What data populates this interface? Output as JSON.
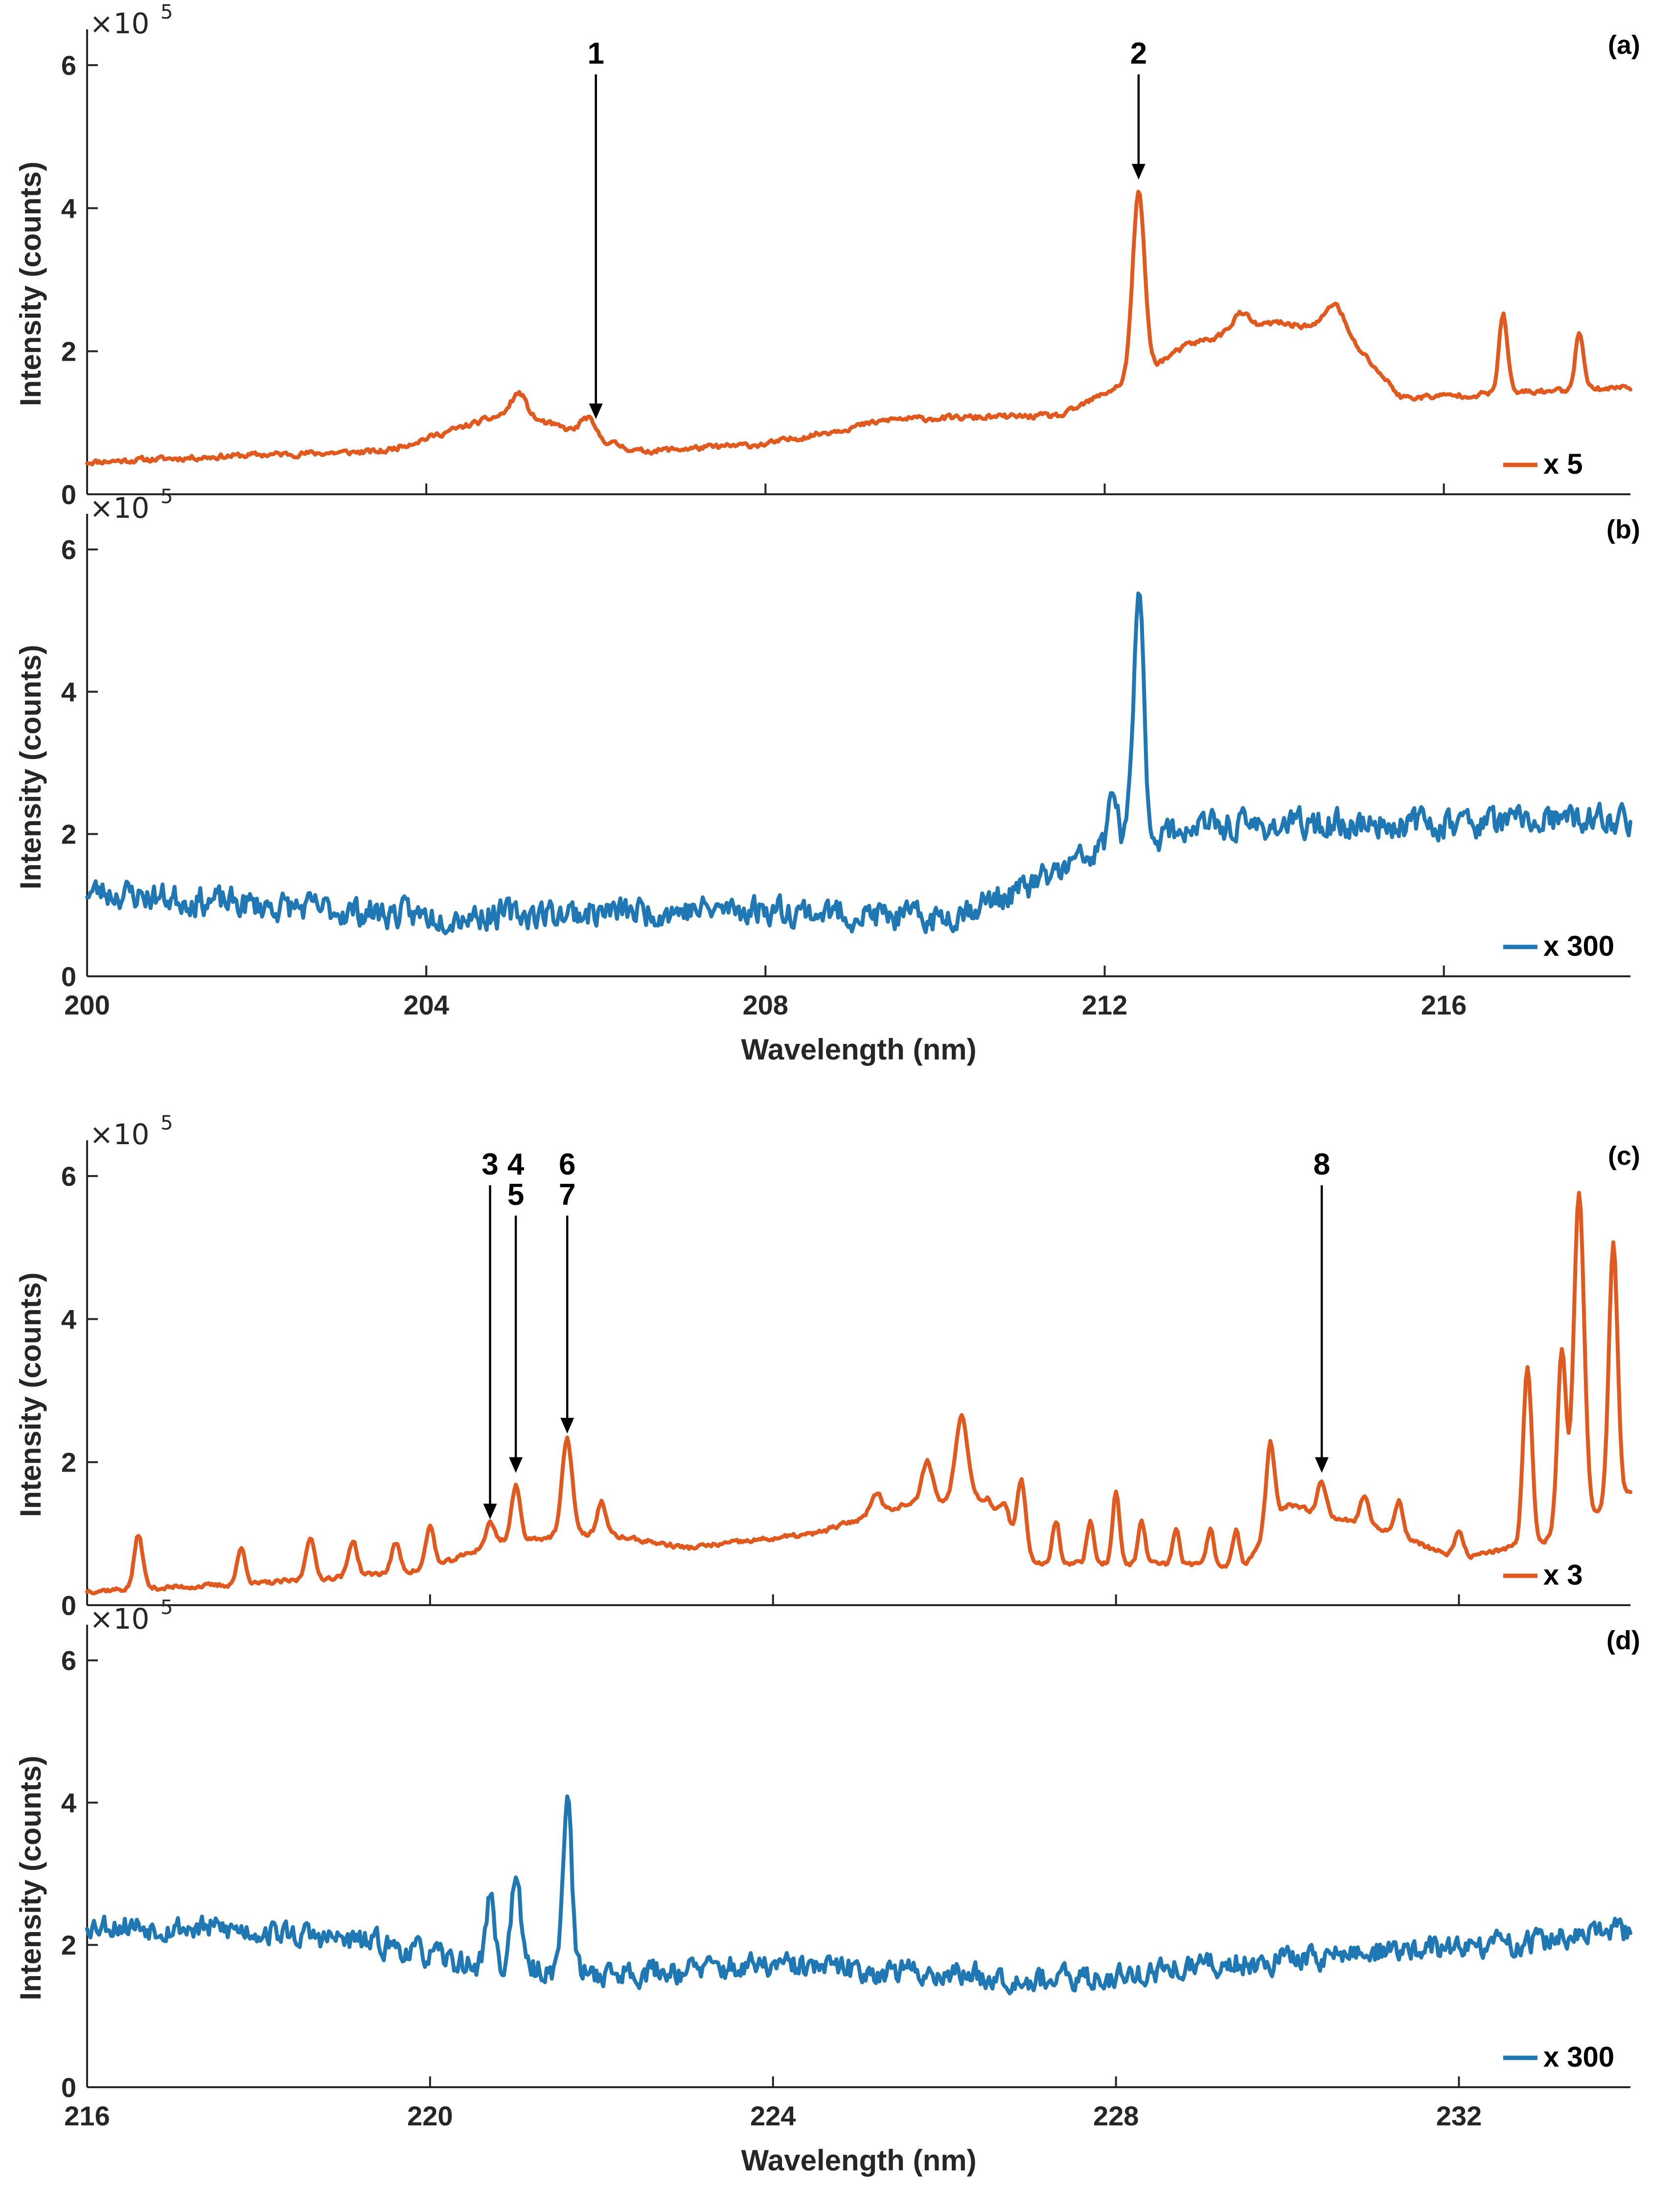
{
  "chart_data": [
    {
      "type": "line",
      "panel_label": "(a)",
      "ylabel": "Intensity (counts)",
      "exponent_label": "×10",
      "exponent_power": "5",
      "xlim": [
        200,
        218.2
      ],
      "ylim": [
        0,
        6.5
      ],
      "yticks": [
        "0",
        "2",
        "4",
        "6"
      ],
      "ytick_values": [
        0,
        2,
        4,
        6
      ],
      "xtick_values": [
        200,
        204,
        208,
        212,
        216
      ],
      "show_xtick_labels": false,
      "xlabel": "",
      "color": "#E05A20",
      "legend": "x 5",
      "noise": 0.06,
      "seed": 11,
      "baseline": [
        [
          200,
          0.45
        ],
        [
          202,
          0.55
        ],
        [
          203.5,
          0.6
        ],
        [
          205,
          1.15
        ],
        [
          206.5,
          0.6
        ],
        [
          208,
          0.7
        ],
        [
          209.5,
          1.05
        ],
        [
          211.5,
          1.1
        ],
        [
          212.3,
          1.6
        ],
        [
          213,
          2.1
        ],
        [
          214,
          2.4
        ],
        [
          214.8,
          2.3
        ],
        [
          215.5,
          1.35
        ],
        [
          216.5,
          1.4
        ],
        [
          218.2,
          1.5
        ]
      ],
      "peaks": [
        [
          205.1,
          0.3,
          0.08
        ],
        [
          205.9,
          0.25,
          0.08
        ],
        [
          212.4,
          2.55,
          0.07
        ],
        [
          213.6,
          0.25,
          0.1
        ],
        [
          214.7,
          0.35,
          0.1
        ],
        [
          216.7,
          1.1,
          0.05
        ],
        [
          217.6,
          0.8,
          0.05
        ]
      ],
      "annotations": [
        {
          "lines": [
            "1"
          ],
          "x": 206.0,
          "y_tip": 1.05
        },
        {
          "lines": [
            "2"
          ],
          "x": 212.4,
          "y_tip": 4.4
        }
      ]
    },
    {
      "type": "line",
      "panel_label": "(b)",
      "ylabel": "Intensity (counts)",
      "exponent_label": "×10",
      "exponent_power": "5",
      "xlim": [
        200,
        218.2
      ],
      "ylim": [
        0,
        6.5
      ],
      "yticks": [
        "0",
        "2",
        "4",
        "6"
      ],
      "ytick_values": [
        0,
        2,
        4,
        6
      ],
      "xtick_values": [
        200,
        204,
        208,
        212,
        216
      ],
      "xticks": [
        "200",
        "204",
        "208",
        "212",
        "216"
      ],
      "show_xtick_labels": true,
      "xlabel": "Wavelength (nm)",
      "color": "#1F77B4",
      "legend": "x 300",
      "noise": 0.32,
      "seed": 23,
      "baseline": [
        [
          200,
          1.2
        ],
        [
          202,
          1.0
        ],
        [
          204,
          0.85
        ],
        [
          206,
          0.9
        ],
        [
          208,
          0.95
        ],
        [
          210,
          0.8
        ],
        [
          211,
          1.2
        ],
        [
          212,
          1.8
        ],
        [
          213,
          2.1
        ],
        [
          218.2,
          2.2
        ]
      ],
      "peaks": [
        [
          212.4,
          3.5,
          0.06
        ],
        [
          212.1,
          0.8,
          0.05
        ]
      ],
      "annotations": []
    },
    {
      "type": "line",
      "panel_label": "(c)",
      "ylabel": "Intensity (counts)",
      "exponent_label": "×10",
      "exponent_power": "5",
      "xlim": [
        216,
        234
      ],
      "ylim": [
        0,
        6.5
      ],
      "yticks": [
        "0",
        "2",
        "4",
        "6"
      ],
      "ytick_values": [
        0,
        2,
        4,
        6
      ],
      "xtick_values": [
        216,
        220,
        224,
        228,
        232
      ],
      "show_xtick_labels": false,
      "xlabel": "",
      "color": "#E05A20",
      "legend": "x 3",
      "noise": 0.05,
      "seed": 37,
      "baseline": [
        [
          216,
          0.2
        ],
        [
          218,
          0.3
        ],
        [
          220,
          0.5
        ],
        [
          220.8,
          0.9
        ],
        [
          222,
          1.0
        ],
        [
          223,
          0.8
        ],
        [
          224.5,
          1.0
        ],
        [
          225.5,
          1.4
        ],
        [
          226.5,
          1.5
        ],
        [
          227,
          0.6
        ],
        [
          229.5,
          0.55
        ],
        [
          230,
          1.4
        ],
        [
          231,
          1.1
        ],
        [
          232,
          0.65
        ],
        [
          233,
          0.9
        ],
        [
          234,
          1.6
        ]
      ],
      "peaks": [
        [
          216.6,
          0.75,
          0.05
        ],
        [
          217.8,
          0.5,
          0.05
        ],
        [
          218.6,
          0.6,
          0.05
        ],
        [
          219.1,
          0.5,
          0.05
        ],
        [
          219.6,
          0.4,
          0.05
        ],
        [
          220.0,
          0.6,
          0.05
        ],
        [
          220.7,
          0.3,
          0.05
        ],
        [
          221.0,
          0.75,
          0.05
        ],
        [
          221.6,
          1.35,
          0.06
        ],
        [
          222.0,
          0.45,
          0.05
        ],
        [
          225.2,
          0.3,
          0.06
        ],
        [
          225.8,
          0.6,
          0.06
        ],
        [
          226.2,
          1.2,
          0.07
        ],
        [
          226.7,
          0.3,
          0.05
        ],
        [
          226.9,
          0.95,
          0.05
        ],
        [
          227.3,
          0.6,
          0.04
        ],
        [
          227.7,
          0.6,
          0.04
        ],
        [
          228.0,
          1.0,
          0.04
        ],
        [
          228.3,
          0.6,
          0.04
        ],
        [
          228.7,
          0.5,
          0.04
        ],
        [
          229.1,
          0.5,
          0.04
        ],
        [
          229.4,
          0.5,
          0.04
        ],
        [
          229.8,
          1.2,
          0.05
        ],
        [
          230.4,
          0.45,
          0.05
        ],
        [
          230.9,
          0.4,
          0.05
        ],
        [
          231.3,
          0.5,
          0.05
        ],
        [
          232.0,
          0.35,
          0.05
        ],
        [
          232.8,
          2.5,
          0.05
        ],
        [
          233.2,
          2.5,
          0.05
        ],
        [
          233.4,
          4.6,
          0.06
        ],
        [
          233.8,
          3.6,
          0.05
        ]
      ],
      "annotations": [
        {
          "lines": [
            "3"
          ],
          "x": 220.7,
          "y_tip": 1.2
        },
        {
          "lines": [
            "4",
            "5"
          ],
          "x": 221.0,
          "y_tip": 1.85
        },
        {
          "lines": [
            "6",
            "7"
          ],
          "x": 221.6,
          "y_tip": 2.4
        },
        {
          "lines": [
            "8"
          ],
          "x": 230.4,
          "y_tip": 1.85
        }
      ]
    },
    {
      "type": "line",
      "panel_label": "(d)",
      "ylabel": "Intensity (counts)",
      "exponent_label": "×10",
      "exponent_power": "5",
      "xlim": [
        216,
        234
      ],
      "ylim": [
        0,
        6.5
      ],
      "yticks": [
        "0",
        "2",
        "4",
        "6"
      ],
      "ytick_values": [
        0,
        2,
        4,
        6
      ],
      "xtick_values": [
        216,
        220,
        224,
        228,
        232
      ],
      "xticks": [
        "216",
        "220",
        "224",
        "228",
        "232"
      ],
      "show_xtick_labels": true,
      "xlabel": "Wavelength (nm)",
      "color": "#1F77B4",
      "legend": "x 300",
      "noise": 0.28,
      "seed": 53,
      "baseline": [
        [
          216,
          2.3
        ],
        [
          218,
          2.2
        ],
        [
          219.5,
          2.0
        ],
        [
          220.5,
          1.7
        ],
        [
          222,
          1.6
        ],
        [
          224,
          1.7
        ],
        [
          226,
          1.6
        ],
        [
          227.5,
          1.5
        ],
        [
          229,
          1.7
        ],
        [
          231,
          1.9
        ],
        [
          232.5,
          2.0
        ],
        [
          234,
          2.2
        ]
      ],
      "peaks": [
        [
          220.7,
          1.0,
          0.05
        ],
        [
          221.0,
          1.4,
          0.05
        ],
        [
          221.6,
          2.5,
          0.05
        ]
      ],
      "annotations": []
    }
  ]
}
